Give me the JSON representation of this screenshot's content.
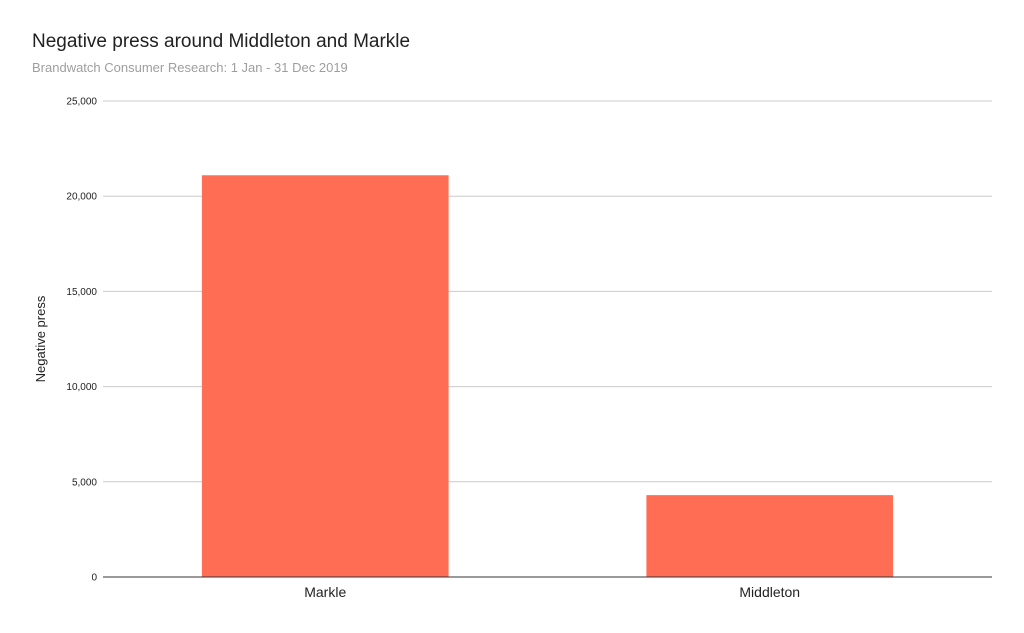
{
  "chart_data": {
    "type": "bar",
    "title": "Negative press around Middleton and Markle",
    "subtitle": "Brandwatch Consumer Research: 1 Jan - 31 Dec 2019",
    "xlabel": "",
    "ylabel": "Negative press",
    "categories": [
      "Markle",
      "Middleton"
    ],
    "series": [
      {
        "values": [
          21100,
          4300
        ]
      }
    ],
    "ylim": [
      0,
      25000
    ],
    "yticks": [
      0,
      5000,
      10000,
      15000,
      20000,
      25000
    ],
    "ytick_labels": [
      "0",
      "5,000",
      "10,000",
      "15,000",
      "20,000",
      "25,000"
    ],
    "bar_color": "#ff6d55",
    "grid": true,
    "legend": "none"
  }
}
